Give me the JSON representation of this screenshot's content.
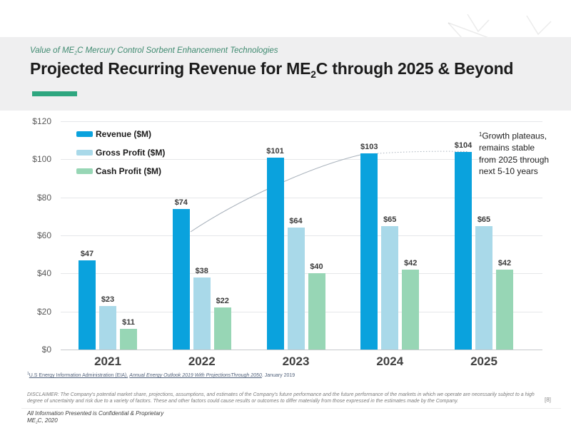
{
  "header": {
    "eyebrow": {
      "pre": "Value of ME",
      "sub": "2",
      "post": "C Mercury Control Sorbent Enhancement Technologies"
    },
    "title": {
      "pre": "Projected Recurring Revenue for ME",
      "sub": "2",
      "post": "C through 2025 & Beyond"
    }
  },
  "colors": {
    "accent_green": "#2ea67f",
    "revenue_blue": "#0aa2dd",
    "gross_profit_blue": "#a9d9e9",
    "cash_profit_green": "#97d6b5",
    "trendline_gray": "#a9b2bc"
  },
  "chart_data": {
    "type": "bar",
    "title": "",
    "xlabel": "",
    "ylabel": "",
    "categories": [
      "2021",
      "2022",
      "2023",
      "2024",
      "2025"
    ],
    "series": [
      {
        "name": "Revenue ($M)",
        "color": "#0aa2dd",
        "values": [
          47,
          74,
          101,
          103,
          104
        ]
      },
      {
        "name": "Gross Profit ($M)",
        "color": "#a9d9e9",
        "values": [
          23,
          38,
          64,
          65,
          65
        ]
      },
      {
        "name": "Cash Profit ($M)",
        "color": "#97d6b5",
        "values": [
          11,
          22,
          40,
          42,
          42
        ]
      }
    ],
    "value_prefix": "$",
    "y_ticks": [
      "$120",
      "$100",
      "$80",
      "$60",
      "$40",
      "$20",
      "$0"
    ],
    "ylim": [
      0,
      120
    ],
    "grid": true,
    "legend_position": "top-left",
    "trendline": {
      "description": "smooth growth curve along Revenue tops, solid from 2022 to 2024, dotted (projection) from 2024 to 2025",
      "color": "#a9b2bc"
    }
  },
  "annotation": {
    "sup": "1",
    "lines": [
      "Growth plateaus,",
      "remains stable",
      "from 2025 through",
      "next 5-10 years"
    ]
  },
  "footnote": {
    "sup": "1",
    "source": "U.S Energy Information Administration (EIA).",
    "publication": "Annual Energy Outlook 2019 With ProjectionsThrough 2050",
    "tail": ". January 2019"
  },
  "disclaimer": "DISCLAIMER:  The Company's potential market share, projections, assumptions, and estimates of the Company's future performance and the future performance of the markets in which we operate are necessarily subject to a high degree of uncertainty and risk due to a variety of factors. These and other factors could cause results or outcomes to differ materially from those expressed in the estimates made by the Company.",
  "page_number": "[8]",
  "footer": {
    "line1": "All Information Presented is Confidential & Proprietary",
    "line2": {
      "pre": "ME",
      "sub": "2",
      "post": "C, 2020"
    }
  }
}
